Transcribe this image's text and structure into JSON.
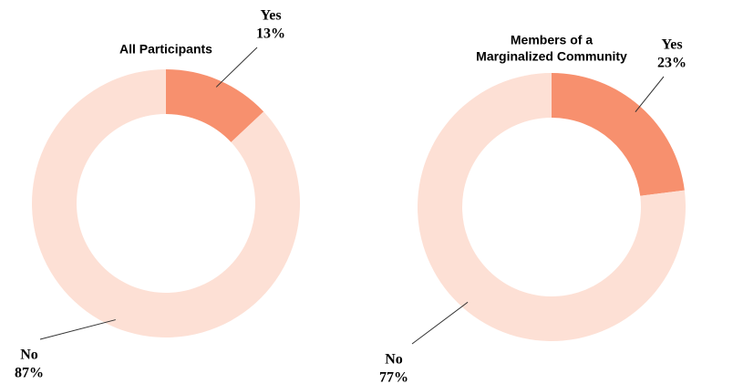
{
  "chart_data": [
    {
      "type": "pie",
      "title": [
        "All Participants"
      ],
      "categories": [
        "Yes",
        "No"
      ],
      "values": [
        13,
        87
      ],
      "value_labels": [
        "13%",
        "87%"
      ],
      "colors": [
        "#f7906e",
        "#fde0d5"
      ],
      "donut": true
    },
    {
      "type": "pie",
      "title": [
        "Members of a",
        "Marginalized Community"
      ],
      "categories": [
        "Yes",
        "No"
      ],
      "values": [
        23,
        77
      ],
      "value_labels": [
        "23%",
        "77%"
      ],
      "colors": [
        "#f7906e",
        "#fde0d5"
      ],
      "donut": true
    }
  ]
}
